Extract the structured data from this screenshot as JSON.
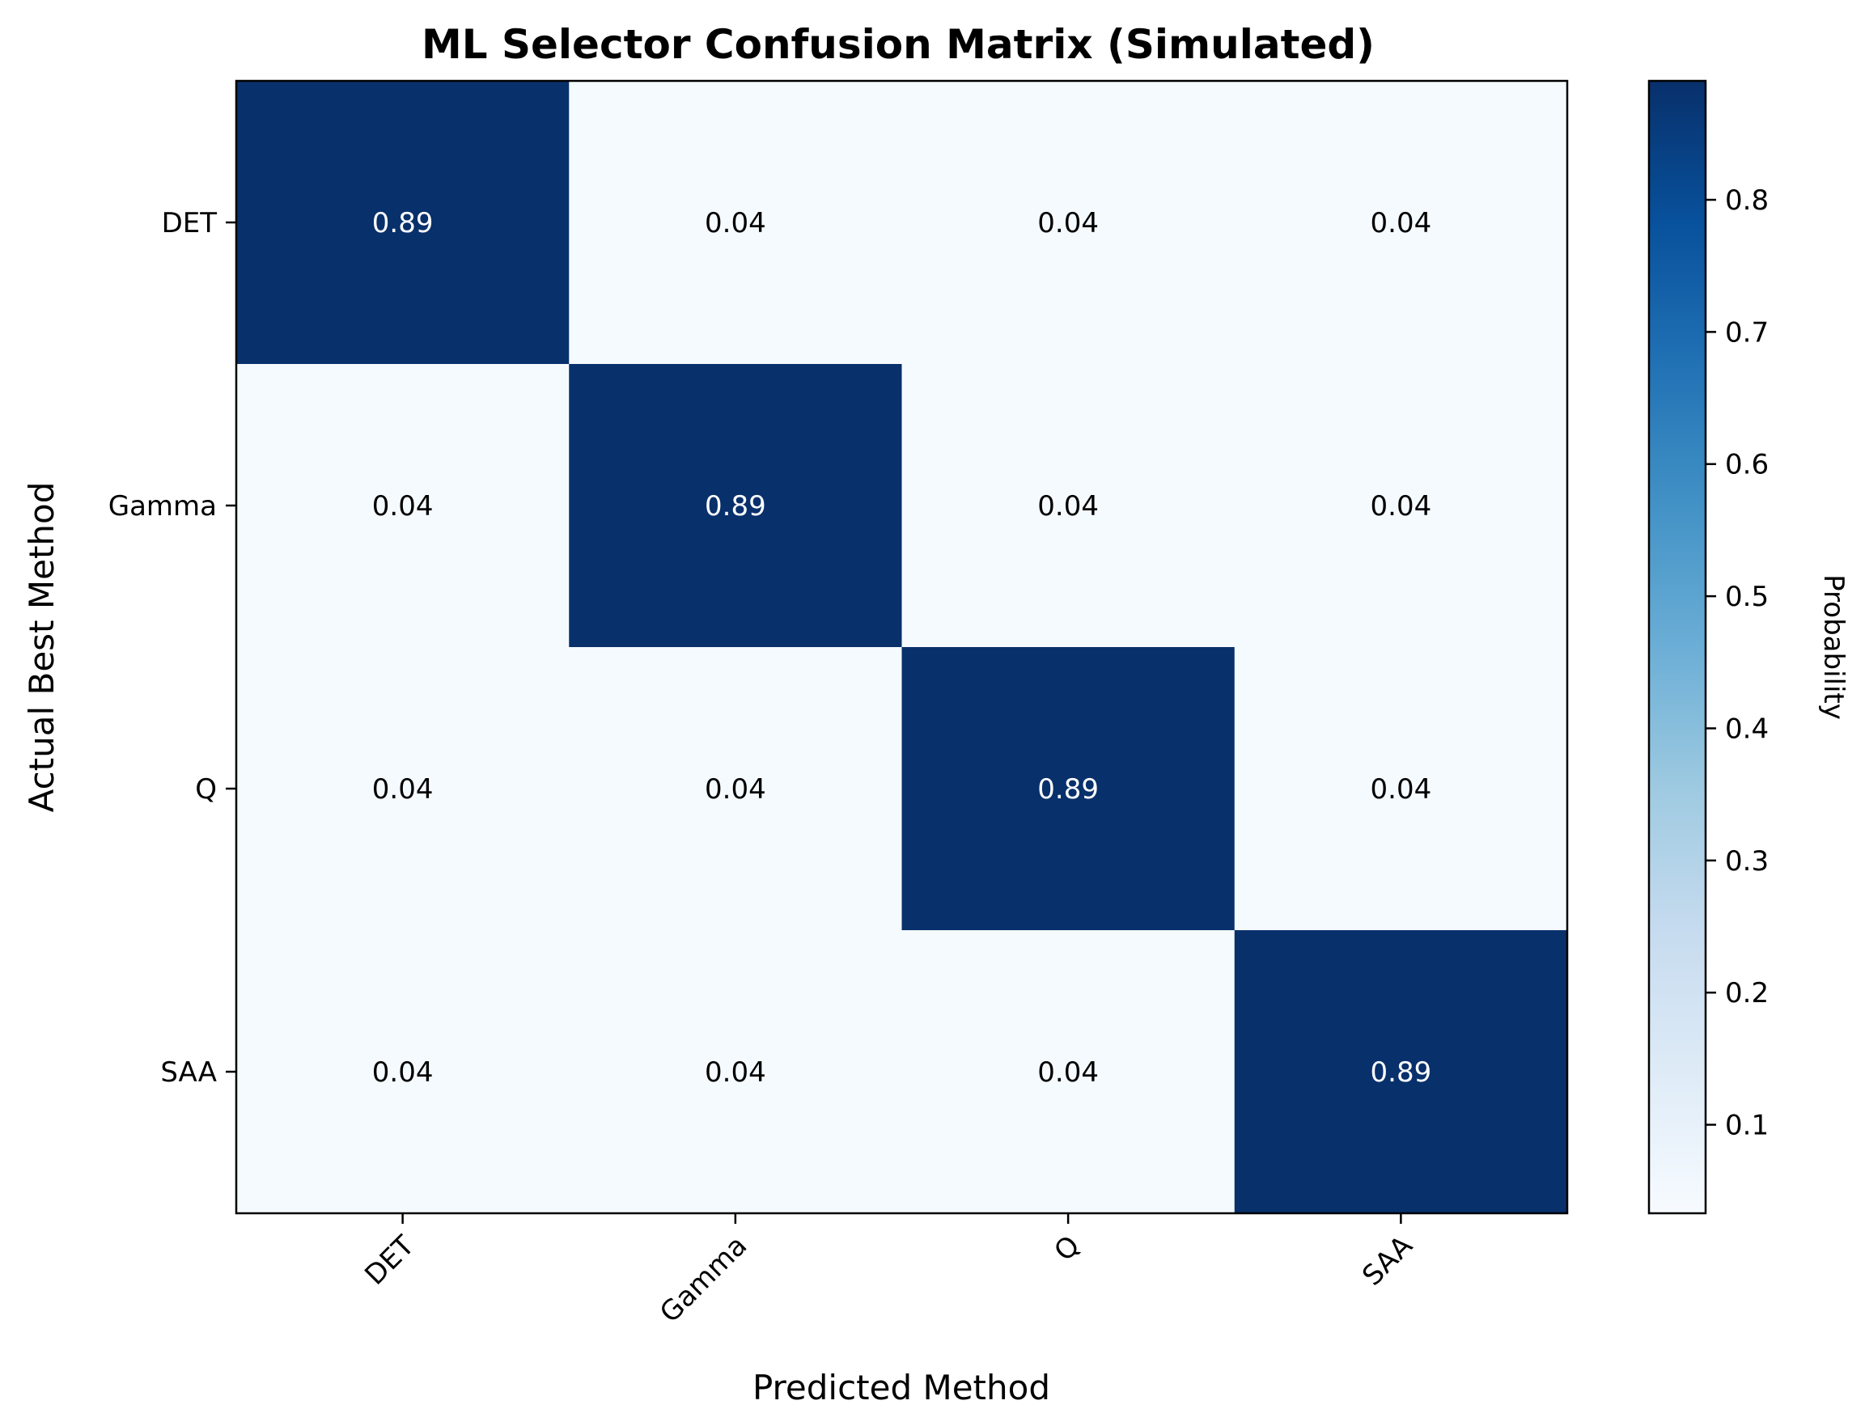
{
  "chart_data": {
    "type": "heatmap",
    "title": "ML Selector Confusion Matrix (Simulated)",
    "xlabel": "Predicted Method",
    "ylabel": "Actual Best Method",
    "x_categories": [
      "DET",
      "Gamma",
      "Q",
      "SAA"
    ],
    "y_categories": [
      "DET",
      "Gamma",
      "Q",
      "SAA"
    ],
    "values": [
      [
        0.89,
        0.04,
        0.04,
        0.04
      ],
      [
        0.04,
        0.89,
        0.04,
        0.04
      ],
      [
        0.04,
        0.04,
        0.89,
        0.04
      ],
      [
        0.04,
        0.04,
        0.04,
        0.89
      ]
    ],
    "value_labels": [
      [
        "0.89",
        "0.04",
        "0.04",
        "0.04"
      ],
      [
        "0.04",
        "0.89",
        "0.04",
        "0.04"
      ],
      [
        "0.04",
        "0.04",
        "0.89",
        "0.04"
      ],
      [
        "0.04",
        "0.04",
        "0.04",
        "0.89"
      ]
    ],
    "x_tick_rotation_deg": -45,
    "colorbar": {
      "label": "Probability",
      "range": [
        0.033,
        0.89
      ],
      "ticks": [
        0.1,
        0.2,
        0.3,
        0.4,
        0.5,
        0.6,
        0.7,
        0.8
      ],
      "tick_labels": [
        "0.1",
        "0.2",
        "0.3",
        "0.4",
        "0.5",
        "0.6",
        "0.7",
        "0.8"
      ],
      "colormap": "Blues",
      "color_low": "#f7fbff",
      "color_high": "#08306b"
    },
    "text_color_dark_cell": "#ffffff",
    "text_color_light_cell": "#000000",
    "grid": false
  }
}
